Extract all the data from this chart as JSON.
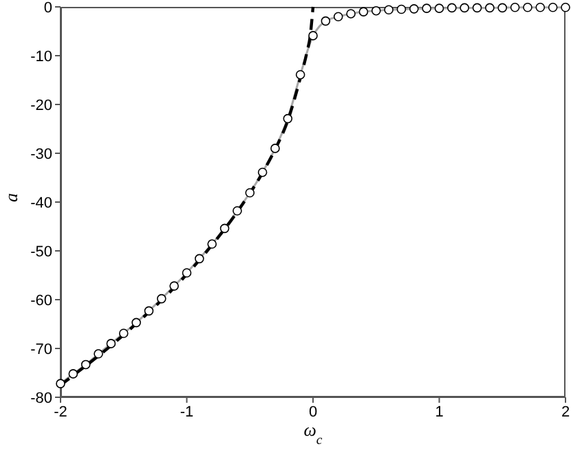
{
  "chart_data": {
    "type": "line",
    "xlabel": "ω$_{c}$",
    "ylabel": "a",
    "xlim": [
      -2,
      2
    ],
    "ylim": [
      -80,
      0
    ],
    "xticks": [
      -2,
      -1,
      0,
      1,
      2
    ],
    "yticks": [
      -80,
      -70,
      -60,
      -50,
      -40,
      -30,
      -20,
      -10,
      0
    ],
    "grid": false,
    "series": [
      {
        "color": "#a8a8a8",
        "line_style": "solid",
        "marker": "none",
        "x": [
          -2,
          -1.9,
          -1.8,
          -1.7,
          -1.6,
          -1.5,
          -1.4,
          -1.3,
          -1.2,
          -1.1,
          -1,
          -0.9,
          -0.8,
          -0.7,
          -0.6,
          -0.5,
          -0.4,
          -0.3,
          -0.2,
          -0.1,
          0,
          0.05,
          0.1,
          0.2,
          0.3,
          0.4,
          0.5,
          0.6,
          0.7,
          0.8,
          0.9,
          1,
          1.2,
          1.4,
          1.6,
          1.8,
          2
        ],
        "values": [
          -77.2,
          -75.2,
          -73.3,
          -71.1,
          -69.0,
          -66.9,
          -64.7,
          -62.3,
          -59.8,
          -57.2,
          -54.5,
          -51.6,
          -48.6,
          -45.4,
          -41.8,
          -38.1,
          -33.9,
          -29.0,
          -22.9,
          -13.9,
          -5.9,
          -4,
          -2.9,
          -2.0,
          -1.4,
          -1.0,
          -0.8,
          -0.6,
          -0.5,
          -0.4,
          -0.3,
          -0.3,
          -0.2,
          -0.2,
          -0.1,
          -0.1,
          -0.1
        ]
      },
      {
        "type": "scatter",
        "color": "#000000",
        "marker": "circle",
        "x": [
          -2,
          -1.9,
          -1.8,
          -1.7,
          -1.6,
          -1.5,
          -1.4,
          -1.3,
          -1.2,
          -1.1,
          -1,
          -0.9,
          -0.8,
          -0.7,
          -0.6,
          -0.5,
          -0.4,
          -0.3,
          -0.2,
          -0.1,
          0,
          0.1,
          0.2,
          0.3,
          0.4,
          0.5,
          0.6,
          0.7,
          0.8,
          0.9,
          1,
          1.1,
          1.2,
          1.3,
          1.4,
          1.5,
          1.6,
          1.7,
          1.8,
          1.9,
          2
        ],
        "values": [
          -77.2,
          -75.2,
          -73.3,
          -71.1,
          -69.0,
          -66.9,
          -64.7,
          -62.3,
          -59.8,
          -57.2,
          -54.5,
          -51.6,
          -48.6,
          -45.4,
          -41.8,
          -38.1,
          -33.9,
          -29.0,
          -22.9,
          -13.9,
          -5.9,
          -2.9,
          -2.0,
          -1.4,
          -1.0,
          -0.8,
          -0.6,
          -0.5,
          -0.4,
          -0.3,
          -0.3,
          -0.2,
          -0.2,
          -0.2,
          -0.2,
          -0.2,
          -0.1,
          -0.1,
          -0.1,
          -0.1,
          -0.1
        ]
      },
      {
        "type": "line",
        "color": "#000000",
        "line_style": "dashed",
        "marker": "none",
        "x": [
          -2,
          -1.5,
          -1,
          -0.8,
          -0.6,
          -0.4,
          -0.3,
          -0.2,
          -0.1,
          -0.05,
          -0.02,
          0
        ],
        "values": [
          -77.5,
          -67.2,
          -54.8,
          -48.8,
          -42,
          -34,
          -29.2,
          -23.3,
          -14.5,
          -9.5,
          -5.5,
          0
        ]
      }
    ]
  }
}
